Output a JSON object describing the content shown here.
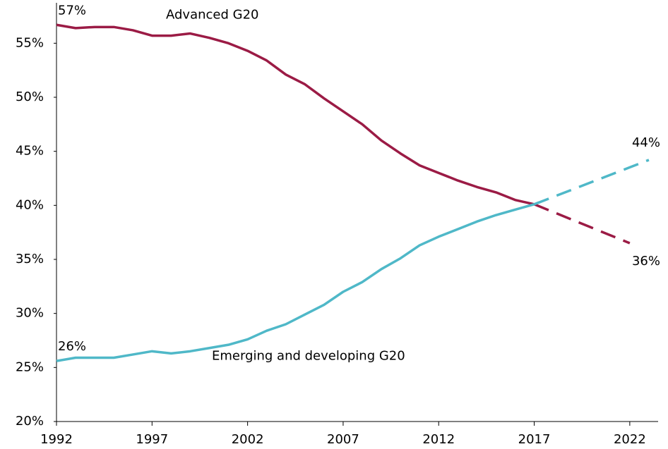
{
  "chart_data": {
    "type": "line",
    "x": [
      1992,
      1993,
      1994,
      1995,
      1996,
      1997,
      1998,
      1999,
      2000,
      2001,
      2002,
      2003,
      2004,
      2005,
      2006,
      2007,
      2008,
      2009,
      2010,
      2011,
      2012,
      2013,
      2014,
      2015,
      2016,
      2017
    ],
    "series": [
      {
        "name": "Advanced G20",
        "color": "#9b1b45",
        "values": [
          56.7,
          56.4,
          56.5,
          56.5,
          56.2,
          55.7,
          55.7,
          55.9,
          55.5,
          55.0,
          54.3,
          53.4,
          52.1,
          51.2,
          49.9,
          48.7,
          47.5,
          46.0,
          44.8,
          43.7,
          43.0,
          42.3,
          41.7,
          41.2,
          40.5,
          40.1
        ],
        "start_label": "57%",
        "projection": {
          "x": [
            2017,
            2022
          ],
          "values": [
            40.1,
            36.5
          ]
        },
        "end_label": "36%"
      },
      {
        "name": "Emerging and developing G20",
        "color": "#4fb8c8",
        "values": [
          25.6,
          25.9,
          25.9,
          25.9,
          26.2,
          26.5,
          26.3,
          26.5,
          26.8,
          27.1,
          27.6,
          28.4,
          29.0,
          29.9,
          30.8,
          32.0,
          32.9,
          34.1,
          35.1,
          36.3,
          37.1,
          37.8,
          38.5,
          39.1,
          39.6,
          40.1
        ],
        "start_label": "26%",
        "projection": {
          "x": [
            2017,
            2023
          ],
          "values": [
            40.1,
            44.2
          ]
        },
        "end_label": "44%"
      }
    ],
    "xlim": [
      1992,
      2024
    ],
    "xticks": [
      1992,
      1997,
      2002,
      2007,
      2012,
      2017,
      2022
    ],
    "ylim": [
      20,
      59
    ],
    "yticks": [
      {
        "value": 20,
        "label": "20%"
      },
      {
        "value": 25,
        "label": "25%"
      },
      {
        "value": 30,
        "label": "30%"
      },
      {
        "value": 35,
        "label": "35%"
      },
      {
        "value": 40,
        "label": "40%"
      },
      {
        "value": 45,
        "label": "45%"
      },
      {
        "value": 50,
        "label": "50%"
      },
      {
        "value": 55,
        "label": "55%"
      }
    ],
    "grid": false
  }
}
